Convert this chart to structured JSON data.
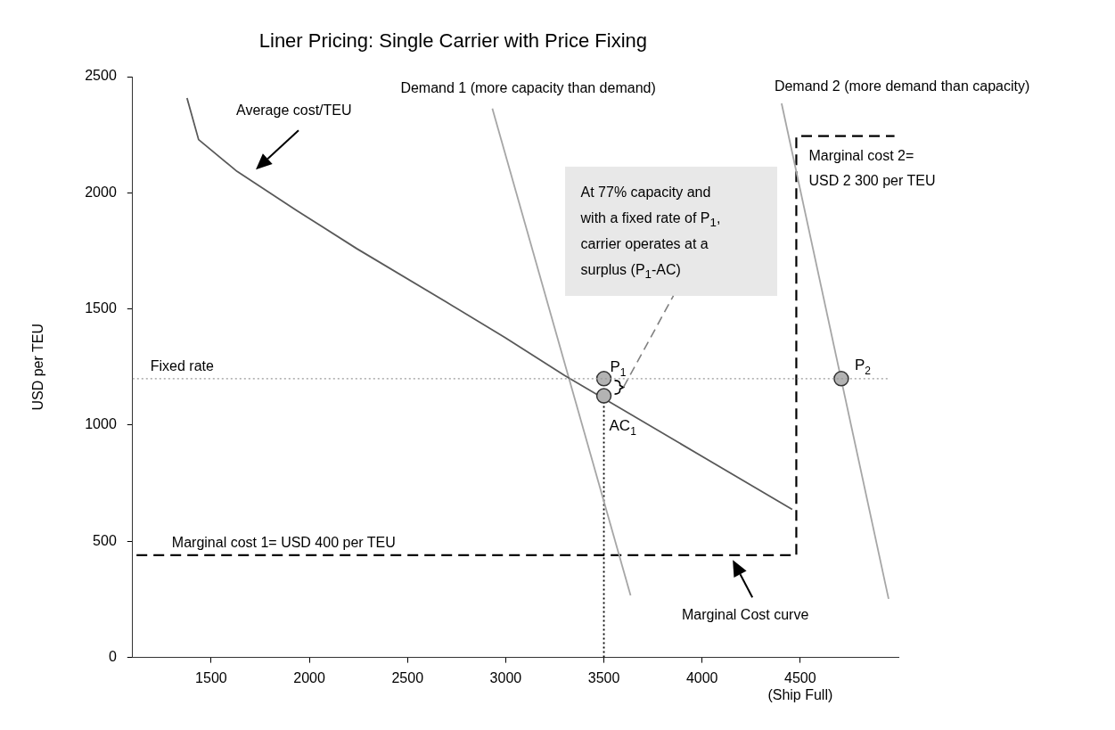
{
  "chart_data": {
    "type": "line",
    "title": "Liner Pricing: Single Carrier with Price Fixing",
    "ylabel": "USD per TEU",
    "xlim": [
      1100,
      5000
    ],
    "ylim": [
      0,
      2500
    ],
    "xticks": [
      1500,
      2000,
      2500,
      3000,
      3500,
      4000,
      {
        "value": 4500,
        "label": "4500\n(Ship Full)"
      }
    ],
    "yticks": [
      0,
      500,
      1000,
      1500,
      2000,
      2500
    ],
    "grid": false,
    "legend": false,
    "series": [
      {
        "name": "Average cost/TEU",
        "color": "#595959",
        "x": [
          1377,
          1436,
          1632,
          1936,
          2241,
          2695,
          2995,
          3300,
          4459
        ],
        "values": [
          2408,
          2229,
          2092,
          1924,
          1760,
          1531,
          1378,
          1214,
          637
        ]
      },
      {
        "name": "Demand 1 (more capacity than demand)",
        "color": "#a6a6a6",
        "x": [
          2932,
          3636
        ],
        "values": [
          2363,
          267
        ]
      },
      {
        "name": "Demand 2 (more demand than capacity)",
        "color": "#a6a6a6",
        "x": [
          4405,
          4950
        ],
        "values": [
          2385,
          252
        ]
      },
      {
        "color": "#000000",
        "line_style": "dashed",
        "x": [
          1120,
          4480,
          4480,
          4980
        ],
        "values": [
          440,
          440,
          2244,
          2244
        ]
      },
      {
        "type": "scatter",
        "color": "#b3b3b3",
        "marker": "circle",
        "x": [
          3500,
          3500,
          4709
        ],
        "values": [
          1200,
          1126,
          1200
        ]
      },
      {
        "color": "#000000",
        "line_style": "dotted",
        "x": [
          3500,
          3500
        ],
        "values": [
          0,
          1126
        ]
      }
    ],
    "ref_lines": [
      {
        "axis": "y",
        "value": 1200,
        "label": "Fixed rate",
        "color": "#999999",
        "line_style": "dotted"
      }
    ],
    "annotations": [
      {
        "text": "Marginal cost 1= USD 400 per TEU",
        "x": 1300,
        "y": 440
      },
      {
        "text": "Marginal cost 2=\nUSD 2 300 per TEU",
        "x": 4480,
        "y": 2244
      },
      "At 77% capacity and\nwith a fixed rate of P$_{1}$,\ncarrier operates at a\nsurplus (P$_{1}$-AC)",
      {
        "text": "P$_{1}$",
        "x": 3500,
        "y": 1200
      },
      {
        "text": "AC$_{1}$",
        "x": 3500,
        "y": 1126
      },
      {
        "text": "P$_{2}$",
        "x": 4709,
        "y": 1200
      },
      "Marginal Cost curve"
    ]
  }
}
